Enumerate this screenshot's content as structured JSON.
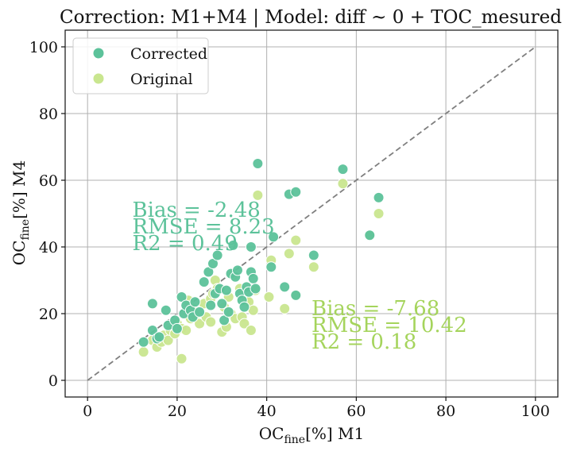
{
  "chart_data": {
    "type": "scatter",
    "title": "Correction: M1+M4 | Model: diff ~ 0 + TOC_mesured",
    "xlabel": {
      "main": "OC",
      "sub": "fine",
      "rest": "[%] M1"
    },
    "ylabel": {
      "main": "OC",
      "sub": "fine",
      "rest": "[%] M4"
    },
    "xlim": [
      -5,
      105
    ],
    "ylim": [
      -5,
      105
    ],
    "xticks": [
      0,
      20,
      40,
      60,
      80,
      100
    ],
    "yticks": [
      0,
      20,
      40,
      60,
      80,
      100
    ],
    "grid": true,
    "legend_position": "top-left",
    "reference_line": {
      "style": "dashed",
      "color": "#7f7f7f",
      "from": [
        0,
        0
      ],
      "to": [
        100,
        100
      ]
    },
    "series": [
      {
        "name": "Corrected",
        "color": "#5cc29a",
        "points": [
          [
            12.5,
            11.5
          ],
          [
            14.5,
            15.0
          ],
          [
            14.5,
            23.0
          ],
          [
            15.5,
            12.5
          ],
          [
            16.0,
            13.0
          ],
          [
            17.5,
            21.0
          ],
          [
            18.0,
            16.5
          ],
          [
            19.5,
            18.0
          ],
          [
            20.0,
            15.5
          ],
          [
            21.0,
            25.0
          ],
          [
            21.5,
            20.0
          ],
          [
            22.0,
            22.5
          ],
          [
            23.0,
            21.0
          ],
          [
            23.5,
            19.0
          ],
          [
            24.0,
            23.5
          ],
          [
            25.0,
            20.5
          ],
          [
            26.0,
            29.5
          ],
          [
            27.0,
            32.5
          ],
          [
            27.5,
            22.5
          ],
          [
            28.0,
            35.0
          ],
          [
            28.5,
            26.0
          ],
          [
            29.0,
            37.5
          ],
          [
            29.5,
            27.5
          ],
          [
            30.0,
            23.0
          ],
          [
            30.5,
            18.0
          ],
          [
            31.0,
            27.0
          ],
          [
            31.5,
            20.5
          ],
          [
            32.0,
            32.0
          ],
          [
            32.5,
            40.5
          ],
          [
            33.0,
            31.0
          ],
          [
            33.5,
            33.0
          ],
          [
            34.0,
            26.0
          ],
          [
            34.5,
            24.0
          ],
          [
            35.0,
            22.0
          ],
          [
            35.5,
            28.0
          ],
          [
            36.0,
            26.5
          ],
          [
            36.5,
            32.5
          ],
          [
            36.5,
            40.0
          ],
          [
            37.0,
            30.5
          ],
          [
            37.5,
            27.5
          ],
          [
            38.0,
            65.0
          ],
          [
            41.0,
            34.0
          ],
          [
            41.5,
            43.0
          ],
          [
            44.0,
            28.0
          ],
          [
            45.0,
            55.8
          ],
          [
            46.5,
            56.5
          ],
          [
            46.5,
            25.5
          ],
          [
            50.5,
            37.5
          ],
          [
            57.0,
            63.3
          ],
          [
            63.0,
            43.5
          ],
          [
            65.0,
            54.8
          ]
        ]
      },
      {
        "name": "Original",
        "color": "#c9e68f",
        "points": [
          [
            12.5,
            8.5
          ],
          [
            14.5,
            12.0
          ],
          [
            15.5,
            10.0
          ],
          [
            16.5,
            11.5
          ],
          [
            17.0,
            13.5
          ],
          [
            18.0,
            12.0
          ],
          [
            18.5,
            15.0
          ],
          [
            19.5,
            14.0
          ],
          [
            20.0,
            17.0
          ],
          [
            21.0,
            15.5
          ],
          [
            21.0,
            6.5
          ],
          [
            22.0,
            15.0
          ],
          [
            22.5,
            24.0
          ],
          [
            23.0,
            18.5
          ],
          [
            23.5,
            21.5
          ],
          [
            24.0,
            19.5
          ],
          [
            25.0,
            17.0
          ],
          [
            26.0,
            23.0
          ],
          [
            26.5,
            19.0
          ],
          [
            27.5,
            24.5
          ],
          [
            27.5,
            17.5
          ],
          [
            28.0,
            26.0
          ],
          [
            28.5,
            30.0
          ],
          [
            29.0,
            27.5
          ],
          [
            30.0,
            14.5
          ],
          [
            30.5,
            22.0
          ],
          [
            31.0,
            16.0
          ],
          [
            31.5,
            25.0
          ],
          [
            32.0,
            20.0
          ],
          [
            32.5,
            31.5
          ],
          [
            33.0,
            18.5
          ],
          [
            34.0,
            27.5
          ],
          [
            34.5,
            19.0
          ],
          [
            35.0,
            17.0
          ],
          [
            35.5,
            24.0
          ],
          [
            36.0,
            23.5
          ],
          [
            36.5,
            15.0
          ],
          [
            37.0,
            21.0
          ],
          [
            37.5,
            27.0
          ],
          [
            38.0,
            55.5
          ],
          [
            40.5,
            25.0
          ],
          [
            41.0,
            36.0
          ],
          [
            44.0,
            21.5
          ],
          [
            45.0,
            38.0
          ],
          [
            46.5,
            42.0
          ],
          [
            46.5,
            25.5
          ],
          [
            50.5,
            34.0
          ],
          [
            57.0,
            59.0
          ],
          [
            63.0,
            43.5
          ],
          [
            65.0,
            50.0
          ]
        ]
      }
    ],
    "annotations": [
      {
        "lines": [
          "Bias = -2.48",
          "RMSE = 8.23",
          "R2 = 0.49"
        ],
        "x": 10,
        "y": 49,
        "color": "#5cc29a"
      },
      {
        "lines": [
          "Bias = -7.68",
          "RMSE = 10.42",
          "R2 = 0.18"
        ],
        "x": 50,
        "y": 19.5,
        "color": "#a5d45c"
      }
    ]
  }
}
